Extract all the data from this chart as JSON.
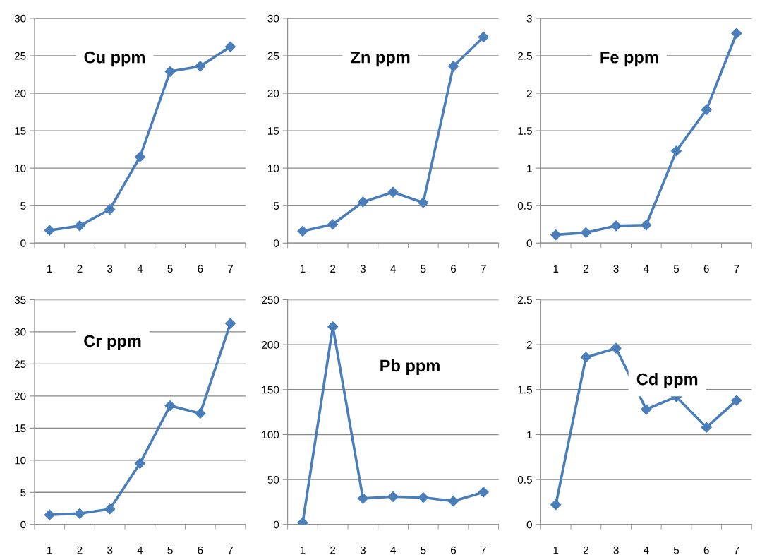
{
  "chart_data": [
    {
      "type": "line",
      "title": "Cu ppm",
      "categories": [
        "1",
        "2",
        "3",
        "4",
        "5",
        "6",
        "7"
      ],
      "series": [
        {
          "color": "#4a7ebb",
          "values": [
            1.7,
            2.3,
            4.5,
            11.5,
            22.9,
            23.6,
            26.2
          ]
        }
      ],
      "ylim": [
        0,
        30
      ],
      "yticks": [
        0,
        5,
        10,
        15,
        20,
        25,
        30
      ],
      "grid": "y",
      "marker": "diamond",
      "line_style": "solid",
      "legend": false
    },
    {
      "type": "line",
      "title": "Zn ppm",
      "categories": [
        "1",
        "2",
        "3",
        "4",
        "5",
        "6",
        "7"
      ],
      "series": [
        {
          "color": "#4a7ebb",
          "values": [
            1.6,
            2.5,
            5.5,
            6.8,
            5.4,
            23.6,
            27.5
          ]
        }
      ],
      "ylim": [
        0,
        30
      ],
      "yticks": [
        0,
        5,
        10,
        15,
        20,
        25,
        30
      ],
      "grid": "y",
      "marker": "diamond",
      "line_style": "solid",
      "legend": false
    },
    {
      "type": "line",
      "title": "Fe ppm",
      "categories": [
        "1",
        "2",
        "3",
        "4",
        "5",
        "6",
        "7"
      ],
      "series": [
        {
          "color": "#4a7ebb",
          "values": [
            0.11,
            0.14,
            0.23,
            0.24,
            1.23,
            1.78,
            2.8
          ]
        }
      ],
      "ylim": [
        0,
        3
      ],
      "yticks": [
        0,
        0.5,
        1,
        1.5,
        2,
        2.5,
        3
      ],
      "grid": "y",
      "marker": "diamond",
      "line_style": "solid",
      "legend": false
    },
    {
      "type": "line",
      "title": "Cr ppm",
      "categories": [
        "1",
        "2",
        "3",
        "4",
        "5",
        "6",
        "7"
      ],
      "series": [
        {
          "color": "#4a7ebb",
          "values": [
            1.5,
            1.7,
            2.4,
            9.5,
            18.5,
            17.3,
            31.3
          ]
        }
      ],
      "ylim": [
        0,
        35
      ],
      "yticks": [
        0,
        5,
        10,
        15,
        20,
        25,
        30,
        35
      ],
      "grid": "y",
      "marker": "diamond",
      "line_style": "solid",
      "legend": false
    },
    {
      "type": "line",
      "title": "Pb ppm",
      "categories": [
        "1",
        "2",
        "3",
        "4",
        "5",
        "6",
        "7"
      ],
      "series": [
        {
          "color": "#4a7ebb",
          "values": [
            2,
            220,
            29,
            31,
            30,
            26,
            36
          ]
        }
      ],
      "ylim": [
        0,
        250
      ],
      "yticks": [
        0,
        50,
        100,
        150,
        200,
        250
      ],
      "grid": "y",
      "marker": "diamond",
      "line_style": "solid",
      "legend": false
    },
    {
      "type": "line",
      "title": "Cd ppm",
      "categories": [
        "1",
        "2",
        "3",
        "4",
        "5",
        "6",
        "7"
      ],
      "series": [
        {
          "color": "#4a7ebb",
          "values": [
            0.22,
            1.86,
            1.96,
            1.28,
            1.42,
            1.08,
            1.38
          ]
        }
      ],
      "ylim": [
        0,
        2.5
      ],
      "yticks": [
        0,
        0.5,
        1,
        1.5,
        2,
        2.5
      ],
      "grid": "y",
      "marker": "diamond",
      "line_style": "solid",
      "legend": false
    }
  ]
}
